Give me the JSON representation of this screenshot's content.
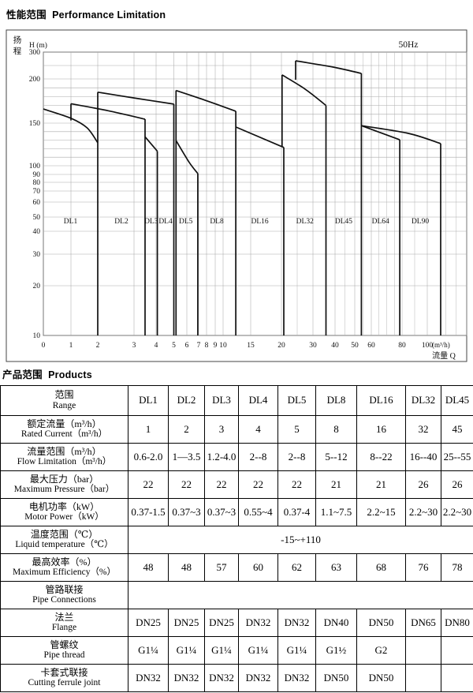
{
  "page": {
    "title_performance": "性能范围  Performance Limitation",
    "title_products": "产品范围  Products"
  },
  "chart_data": {
    "type": "area",
    "title": "Performance Limitation 性能范围",
    "frequency_label": "50Hz",
    "x_axis": {
      "label": "流量  Q",
      "unit": "(m³/h)",
      "origin": "0",
      "ticks": [
        1,
        2,
        3,
        4,
        5,
        6,
        7,
        8,
        9,
        10,
        15,
        20,
        30,
        40,
        50,
        60,
        80,
        100
      ],
      "minor_gridlines": [
        25,
        35,
        45,
        55,
        65,
        70,
        75,
        90,
        120,
        130
      ],
      "range": [
        0,
        140
      ],
      "scale": "log-like"
    },
    "y_axis": {
      "label_cn": "扬程",
      "label": "H (m)",
      "ticks": [
        300,
        200,
        150,
        100,
        90,
        80,
        70,
        60,
        50,
        40,
        30,
        20,
        10
      ],
      "gridlines": [
        20,
        30,
        40,
        50,
        60,
        70,
        80,
        90,
        100,
        110,
        120,
        130,
        140,
        150,
        160,
        170,
        180,
        190,
        200,
        250
      ],
      "range": [
        10,
        300
      ],
      "scale": "log-like"
    },
    "model_regions": [
      {
        "label": "DL1",
        "q_min": 0,
        "q_max": 2
      },
      {
        "label": "DL2",
        "q_min": 2,
        "q_max": 3.5
      },
      {
        "label": "DL3",
        "q_min": 3.5,
        "q_max": 4.07
      },
      {
        "label": "DL4",
        "q_min": 4.07,
        "q_max": 5
      },
      {
        "label": "DL5",
        "q_min": 5,
        "q_max": 6.93
      },
      {
        "label": "DL8",
        "q_min": 6.93,
        "q_max": 12.3
      },
      {
        "label": "DL16",
        "q_min": 12.3,
        "q_max": 20.75
      },
      {
        "label": "DL32",
        "q_min": 20.75,
        "q_max": 35
      },
      {
        "label": "DL45",
        "q_min": 35,
        "q_max": 54
      },
      {
        "label": "DL64",
        "q_min": 54,
        "q_max": 78.5
      },
      {
        "label": "DL90",
        "q_min": 78.5,
        "q_max": 115
      }
    ],
    "region_label_h": 45.5,
    "envelope_strokes": [
      {
        "name": "dl1-top-curve",
        "smooth": true,
        "points": [
          [
            0,
            166
          ],
          [
            1,
            155.5
          ],
          [
            1.6,
            144.5
          ],
          [
            2,
            127
          ]
        ]
      },
      {
        "name": "dl1-max-flow-drop",
        "points": [
          [
            2,
            185
          ],
          [
            2,
            10
          ]
        ]
      },
      {
        "name": "dl2-min-flow-riser",
        "points": [
          [
            1,
            153
          ],
          [
            1,
            172
          ]
        ]
      },
      {
        "name": "dl2-top-curve",
        "smooth": true,
        "points": [
          [
            1,
            172
          ],
          [
            2.35,
            163.5
          ],
          [
            3.5,
            154.5
          ]
        ]
      },
      {
        "name": "dl2-max-flow-drop",
        "points": [
          [
            3.5,
            154.5
          ],
          [
            3.5,
            10
          ]
        ]
      },
      {
        "name": "dl2-knee-line",
        "points": [
          [
            3.5,
            134
          ],
          [
            4.07,
            117
          ]
        ]
      },
      {
        "name": "dl3-max-flow-drop",
        "points": [
          [
            4.07,
            117
          ],
          [
            4.07,
            10
          ]
        ]
      },
      {
        "name": "mid-envelope-top-curve",
        "smooth": true,
        "points": [
          [
            2,
            185
          ],
          [
            3,
            178.5
          ],
          [
            5,
            171.5
          ]
        ]
      },
      {
        "name": "mid-envelope-drop",
        "points": [
          [
            5,
            171.5
          ],
          [
            5,
            10
          ]
        ]
      },
      {
        "name": "dl5-riser",
        "points": [
          [
            5.17,
            187
          ],
          [
            5.17,
            10
          ]
        ]
      },
      {
        "name": "dl5-knee-line",
        "smooth": true,
        "points": [
          [
            5.17,
            129.5
          ],
          [
            6.2,
            104
          ],
          [
            6.93,
            91
          ]
        ]
      },
      {
        "name": "dl5-max-flow-drop",
        "points": [
          [
            6.93,
            91
          ],
          [
            6.93,
            10
          ]
        ]
      },
      {
        "name": "dl8-top-curve",
        "smooth": true,
        "points": [
          [
            5.17,
            187
          ],
          [
            7.8,
            176
          ],
          [
            12.3,
            163.5
          ]
        ]
      },
      {
        "name": "dl8-max-flow-drop",
        "points": [
          [
            12.3,
            163.5
          ],
          [
            12.3,
            10
          ]
        ]
      },
      {
        "name": "dl8-knee-line",
        "points": [
          [
            12.3,
            145.5
          ],
          [
            20.75,
            121.5
          ]
        ]
      },
      {
        "name": "dl16-max-flow-drop",
        "points": [
          [
            20.75,
            121.5
          ],
          [
            20.75,
            10
          ]
        ]
      },
      {
        "name": "dl32-min-flow-riser",
        "points": [
          [
            20.2,
            122
          ],
          [
            20.2,
            215
          ]
        ]
      },
      {
        "name": "dl32-top-curve",
        "smooth": true,
        "points": [
          [
            20.2,
            215
          ],
          [
            27.5,
            188.5
          ],
          [
            35,
            170
          ]
        ]
      },
      {
        "name": "dl32-max-flow-drop",
        "points": [
          [
            35,
            170
          ],
          [
            35,
            10
          ]
        ]
      },
      {
        "name": "dl45-min-flow-riser",
        "points": [
          [
            24.5,
            199
          ],
          [
            24.5,
            267.5
          ]
        ]
      },
      {
        "name": "dl45-top-curve",
        "smooth": true,
        "points": [
          [
            24.5,
            267.5
          ],
          [
            39,
            244
          ],
          [
            54,
            220.5
          ]
        ]
      },
      {
        "name": "dl45-max-flow-drop",
        "points": [
          [
            54,
            220.5
          ],
          [
            54,
            10
          ]
        ]
      },
      {
        "name": "dl64-top-line",
        "points": [
          [
            54,
            147
          ],
          [
            78.5,
            130.5
          ]
        ]
      },
      {
        "name": "dl64-max-flow-drop",
        "points": [
          [
            78.5,
            130.5
          ],
          [
            78.5,
            10
          ]
        ]
      },
      {
        "name": "dl90-top-line",
        "smooth": true,
        "points": [
          [
            54,
            147
          ],
          [
            85,
            138
          ],
          [
            115,
            126
          ]
        ]
      },
      {
        "name": "dl90-max-flow-drop",
        "points": [
          [
            115,
            126
          ],
          [
            115,
            10
          ]
        ]
      }
    ]
  },
  "products_table": {
    "header": {
      "label_cn": "范围",
      "label_en": "Range",
      "columns": [
        "DL1",
        "DL2",
        "DL3",
        "DL4",
        "DL5",
        "DL8",
        "DL16",
        "DL32",
        "DL45"
      ]
    },
    "rows": [
      {
        "id": "rated_flow",
        "cn": "额定流量（m³/h）",
        "en": "Rated Current（m³/h）",
        "values": [
          "1",
          "2",
          "3",
          "4",
          "5",
          "8",
          "16",
          "32",
          "45"
        ]
      },
      {
        "id": "flow_range",
        "cn": "流量范围（m³/h）",
        "en": "Flow Limitation（m³/h）",
        "values": [
          "0.6-2.0",
          "1—3.5",
          "1.2-4.0",
          "2--8",
          "2--8",
          "5--12",
          "8--22",
          "16--40",
          "25--55"
        ]
      },
      {
        "id": "max_pressure",
        "cn": "最大压力（bar）",
        "en": "Maximum Pressure（bar）",
        "values": [
          "22",
          "22",
          "22",
          "22",
          "22",
          "21",
          "21",
          "26",
          "26"
        ]
      },
      {
        "id": "motor_power",
        "cn": "电机功率（kW）",
        "en": "Motor Power（kW）",
        "values": [
          "0.37-1.5",
          "0.37~3",
          "0.37~3",
          "0.55~4",
          "0.37-4",
          "1.1~7.5",
          "2.2~15",
          "2.2~30",
          "2.2~30"
        ]
      },
      {
        "id": "liquid_temp",
        "cn": "温度范围（℃）",
        "en": "Liquid temperature（℃）",
        "span": true,
        "value": "-15~+110"
      },
      {
        "id": "max_efficiency",
        "cn": "最高效率（%）",
        "en": "Maximum Efficiency（%）",
        "values": [
          "48",
          "48",
          "57",
          "60",
          "62",
          "63",
          "68",
          "76",
          "78"
        ]
      },
      {
        "id": "pipe_connections",
        "cn": "管路联接",
        "en": "Pipe    Connections",
        "span": true,
        "value": ""
      },
      {
        "id": "flange",
        "cn": "法兰",
        "en": "Flange",
        "values": [
          "DN25",
          "DN25",
          "DN25",
          "DN32",
          "DN32",
          "DN40",
          "DN50",
          "DN65",
          "DN80"
        ]
      },
      {
        "id": "pipe_thread",
        "cn": "管螺纹",
        "en": "Pipe thread",
        "values": [
          "G1¼",
          "G1¼",
          "G1¼",
          "G1¼",
          "G1¼",
          "G1½",
          "G2",
          "",
          ""
        ]
      },
      {
        "id": "ferrule",
        "cn": "卡套式联接",
        "en": "Cutting ferrule joint",
        "values": [
          "DN32",
          "DN32",
          "DN32",
          "DN32",
          "DN32",
          "DN50",
          "DN50",
          "",
          ""
        ]
      }
    ]
  }
}
